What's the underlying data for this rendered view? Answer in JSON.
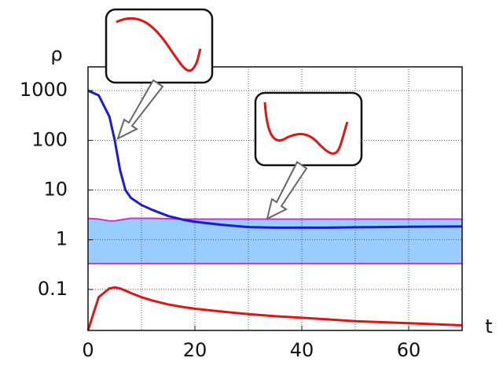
{
  "chart_data": {
    "type": "line",
    "ylabel": "ρ",
    "xlabel": "t",
    "x": [
      0,
      2,
      4,
      5,
      6,
      7,
      8,
      10,
      12,
      15,
      18,
      20,
      25,
      30,
      35,
      40,
      45,
      50,
      55,
      60,
      65,
      70
    ],
    "series": [
      {
        "color": "#1a1ad8",
        "values": [
          1000,
          800,
          300,
          100,
          25,
          10,
          7,
          5,
          4,
          3,
          2.5,
          2.3,
          2,
          1.8,
          1.75,
          1.75,
          1.75,
          1.78,
          1.8,
          1.82,
          1.84,
          1.85
        ]
      },
      {
        "color": "#e01414",
        "values": [
          0.015,
          0.07,
          0.105,
          0.11,
          0.105,
          0.095,
          0.085,
          0.07,
          0.06,
          0.05,
          0.044,
          0.041,
          0.036,
          0.032,
          0.029,
          0.027,
          0.025,
          0.023,
          0.022,
          0.021,
          0.02,
          0.019
        ]
      }
    ],
    "band": {
      "fill": "#99ccff",
      "edge_color": "#cc33cc",
      "upper": [
        2.7,
        2.6,
        2.4,
        2.4,
        2.5,
        2.6,
        2.7,
        2.7,
        2.7,
        2.65,
        2.6,
        2.6,
        2.6,
        2.6,
        2.6,
        2.6,
        2.6,
        2.6,
        2.6,
        2.6,
        2.6,
        2.6
      ],
      "lower": [
        0.33,
        0.33,
        0.33,
        0.33,
        0.33,
        0.33,
        0.33,
        0.33,
        0.33,
        0.33,
        0.33,
        0.33,
        0.33,
        0.33,
        0.33,
        0.33,
        0.33,
        0.33,
        0.33,
        0.33,
        0.33,
        0.33
      ]
    },
    "xlim": [
      0,
      70
    ],
    "xticks": [
      0,
      20,
      40,
      60
    ],
    "ylim": [
      0.015,
      3000
    ],
    "yticks": [
      1000,
      100,
      10,
      1,
      0.1
    ],
    "ylog": true,
    "grid": true,
    "minor_grid": true
  }
}
